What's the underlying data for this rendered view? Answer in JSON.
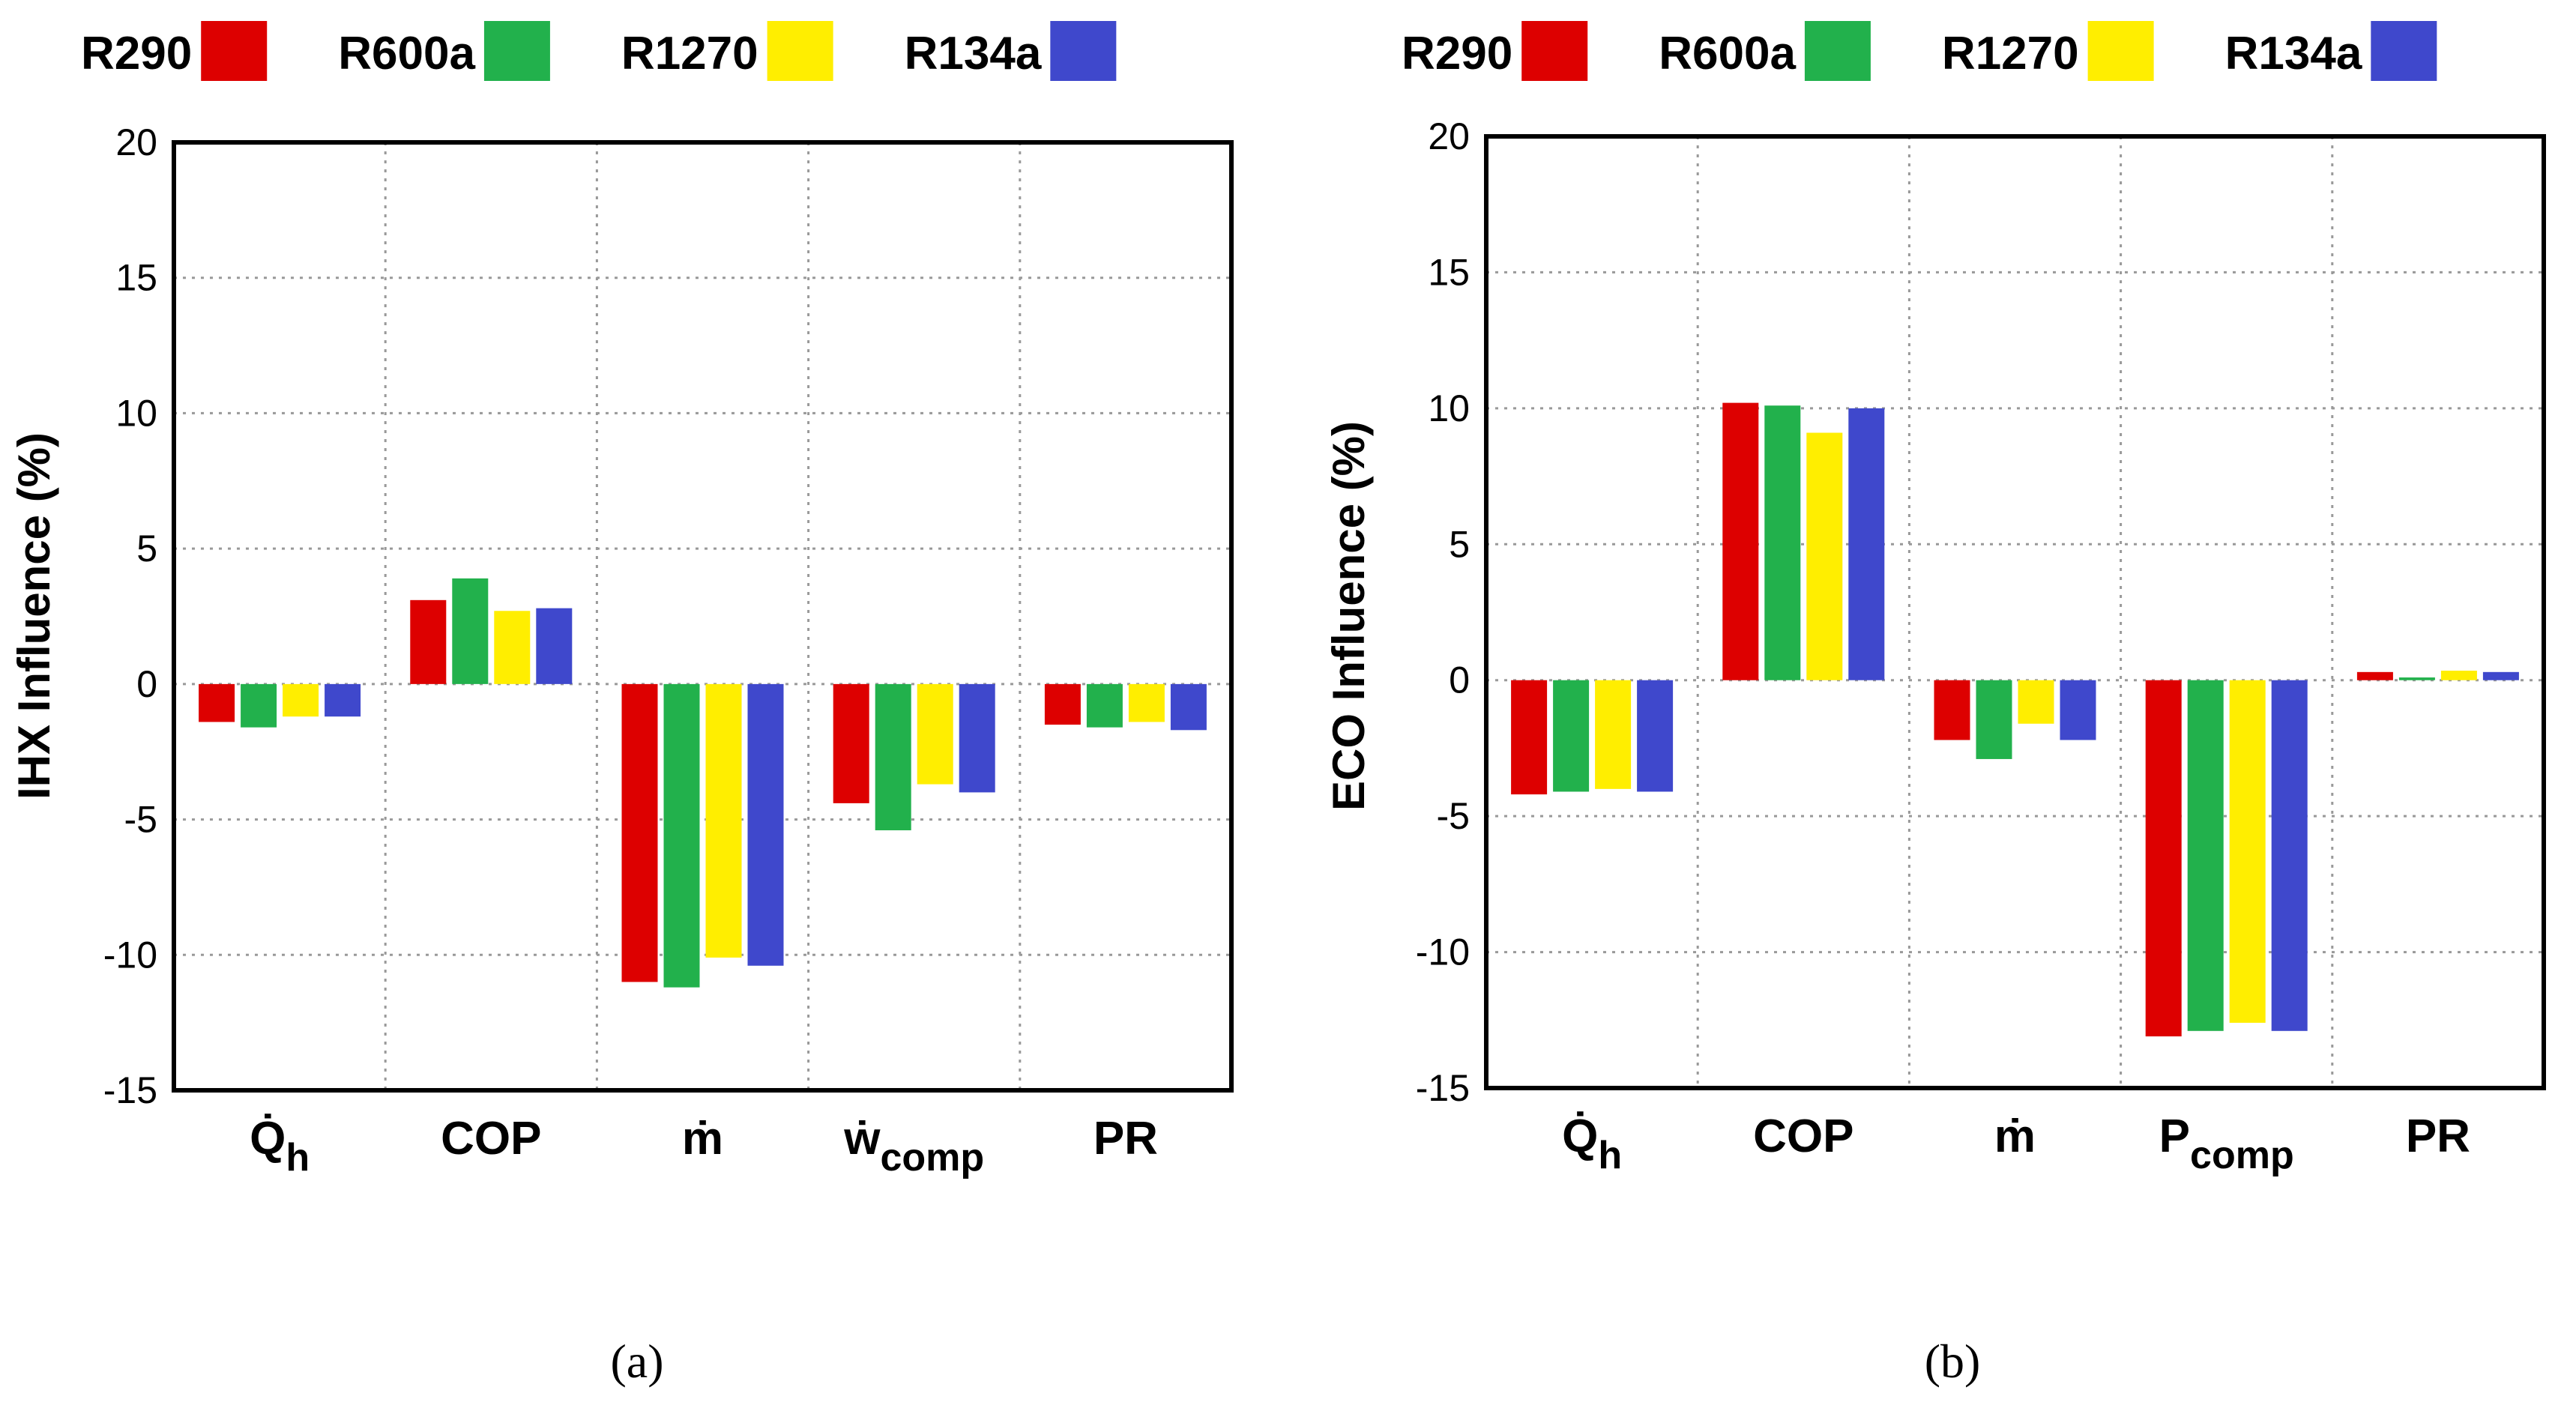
{
  "chart_data": [
    {
      "type": "bar",
      "panel": "(a)",
      "title": "",
      "xlabel": "",
      "ylabel": "IHX Influence (%)",
      "ylim": [
        -15,
        20
      ],
      "yticks": [
        -15,
        -10,
        -5,
        0,
        5,
        10,
        15,
        20
      ],
      "grid": true,
      "legend": "top",
      "categories": [
        {
          "main": "Q̇",
          "sub": "h"
        },
        {
          "main": "COP",
          "sub": ""
        },
        {
          "main": "ṁ",
          "sub": ""
        },
        {
          "main": "ẇ",
          "sub": "comp"
        },
        {
          "main": "PR",
          "sub": ""
        }
      ],
      "series": [
        {
          "name": "R290",
          "color": "#dd0000",
          "values": [
            -1.4,
            3.1,
            -11.0,
            -4.4,
            -1.5
          ]
        },
        {
          "name": "R600a",
          "color": "#22b14c",
          "values": [
            -1.6,
            3.9,
            -11.2,
            -5.4,
            -1.6
          ]
        },
        {
          "name": "R1270",
          "color": "#ffee00",
          "values": [
            -1.2,
            2.7,
            -10.1,
            -3.7,
            -1.4
          ]
        },
        {
          "name": "R134a",
          "color": "#3f48cc",
          "values": [
            -1.2,
            2.8,
            -10.4,
            -4.0,
            -1.7
          ]
        }
      ]
    },
    {
      "type": "bar",
      "panel": "(b)",
      "title": "",
      "xlabel": "",
      "ylabel": "ECO Influence (%)",
      "ylim": [
        -15,
        20
      ],
      "yticks": [
        -15,
        -10,
        -5,
        0,
        5,
        10,
        15,
        20
      ],
      "grid": true,
      "legend": "top",
      "categories": [
        {
          "main": "Q̇",
          "sub": "h"
        },
        {
          "main": "COP",
          "sub": ""
        },
        {
          "main": "ṁ",
          "sub": ""
        },
        {
          "main": "P",
          "sub": "comp"
        },
        {
          "main": "PR",
          "sub": ""
        }
      ],
      "series": [
        {
          "name": "R290",
          "color": "#dd0000",
          "values": [
            -4.2,
            10.2,
            -2.2,
            -13.1,
            0.3
          ]
        },
        {
          "name": "R600a",
          "color": "#22b14c",
          "values": [
            -4.1,
            10.1,
            -2.9,
            -12.9,
            0.1
          ]
        },
        {
          "name": "R1270",
          "color": "#ffee00",
          "values": [
            -4.0,
            9.1,
            -1.6,
            -12.6,
            0.35
          ]
        },
        {
          "name": "R134a",
          "color": "#3f48cc",
          "values": [
            -4.1,
            10.0,
            -2.2,
            -12.9,
            0.3
          ]
        }
      ]
    }
  ]
}
